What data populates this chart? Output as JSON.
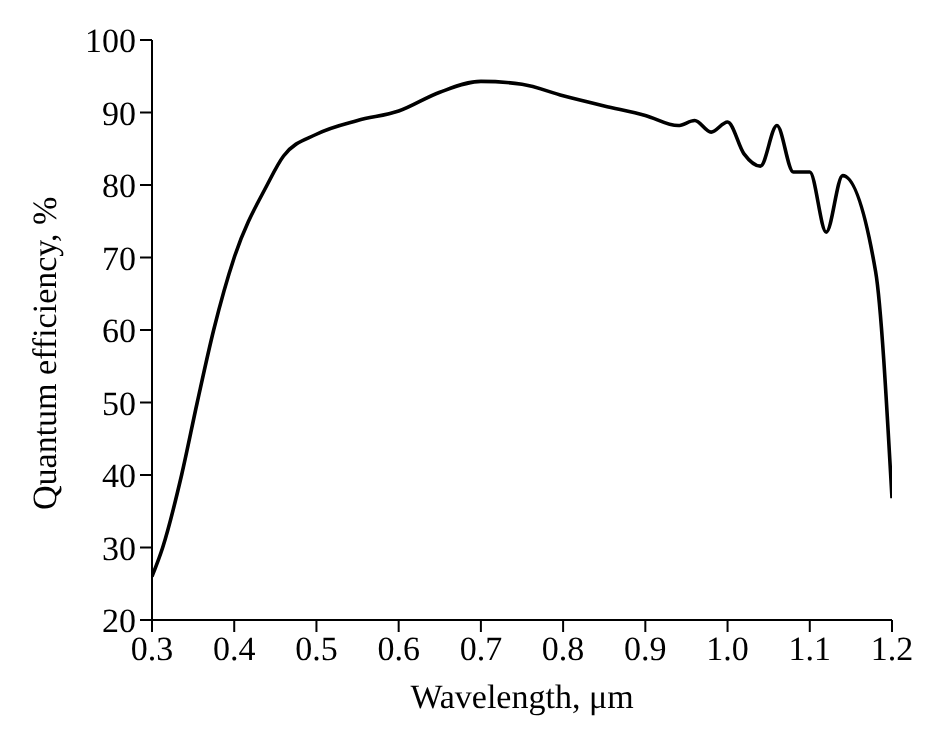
{
  "chart_data": {
    "type": "line",
    "xlabel": "Wavelength, μm",
    "ylabel": "Quantum efficiency, %",
    "series": [
      {
        "color": "#000000",
        "x": [
          0.3,
          0.313,
          0.336,
          0.355,
          0.375,
          0.4,
          0.44,
          0.46,
          0.5,
          0.55,
          0.6,
          0.65,
          0.7,
          0.75,
          0.8,
          0.85,
          0.9,
          0.94,
          0.96,
          0.98,
          1.0,
          1.02,
          1.04,
          1.06,
          1.08,
          1.1,
          1.12,
          1.14,
          1.18,
          1.2
        ],
        "values": [
          26,
          30,
          40,
          50,
          60,
          70,
          80,
          84,
          87,
          88.9,
          90.2,
          92.8,
          94.3,
          93.9,
          92.3,
          90.9,
          89.6,
          88.2,
          88.9,
          87.3,
          88.7,
          84.3,
          82.6,
          88.2,
          81.8,
          81.8,
          73.5,
          81.3,
          68.1,
          36.8
        ]
      }
    ],
    "xlim": [
      0.3,
      1.2
    ],
    "xticks": [
      {
        "value": 0.3,
        "label": "0.3"
      },
      {
        "value": 0.4,
        "label": "0.4"
      },
      {
        "value": 0.5,
        "label": "0.5"
      },
      {
        "value": 0.6,
        "label": "0.6"
      },
      {
        "value": 0.7,
        "label": "0.7"
      },
      {
        "value": 0.8,
        "label": "0.8"
      },
      {
        "value": 0.9,
        "label": "0.9"
      },
      {
        "value": 1.0,
        "label": "1.0"
      },
      {
        "value": 1.1,
        "label": "1.1"
      },
      {
        "value": 1.2,
        "label": "1.2"
      }
    ],
    "ylim": [
      20,
      100
    ],
    "yticks": [
      20,
      30,
      40,
      50,
      60,
      70,
      80,
      90,
      100
    ],
    "grid": false,
    "marker": "none",
    "line_style": "solid"
  }
}
